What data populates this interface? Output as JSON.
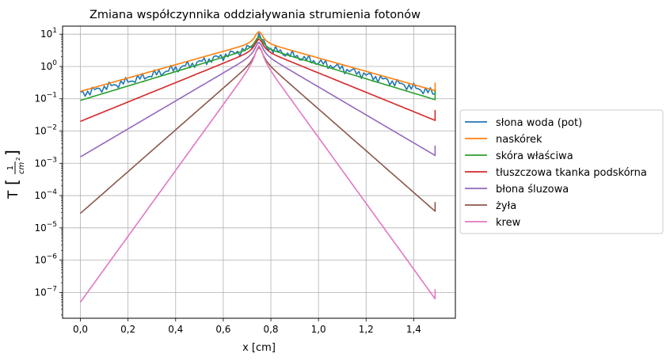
{
  "chart_data": {
    "type": "line",
    "title": "Zmiana współczynnika oddziaływania strumienia fotonów",
    "xlabel": "x [cm]",
    "ylabel": "T",
    "ylabel_frac_num": "1",
    "ylabel_frac_den": "cm",
    "ylabel_frac_exp": "2",
    "yscale": "log",
    "xlim": [
      -0.075,
      1.575
    ],
    "ylim_log10": [
      -7.8,
      1.25
    ],
    "grid": true,
    "legend_position": "center-right outside",
    "x_ticks": [
      "0,0",
      "0,2",
      "0,4",
      "0,6",
      "0,8",
      "1,0",
      "1,2",
      "1,4"
    ],
    "x_tick_values": [
      0,
      0.2,
      0.4,
      0.6,
      0.8,
      1.0,
      1.2,
      1.4
    ],
    "y_tick_exponents": [
      1,
      0,
      -1,
      -2,
      -3,
      -4,
      -5,
      -6,
      -7
    ],
    "y_tick_base": "10",
    "peak_x": 0.75,
    "series": [
      {
        "name": "słona woda (pot)",
        "color": "#1f77b4",
        "noisy": true,
        "edge_log10": -0.85,
        "peak_log10": 0.62,
        "end_log10": -0.7
      },
      {
        "name": "naskórek",
        "color": "#ff7f0e",
        "edge_log10": -0.77,
        "peak_log10": 0.78,
        "end_log10": -0.5
      },
      {
        "name": "skóra właściwa",
        "color": "#2ca02c",
        "edge_log10": -1.05,
        "peak_log10": 0.62,
        "end_log10": -0.75
      },
      {
        "name": "tłuszczowa tkanka podskórna",
        "color": "#d62728",
        "edge_log10": -1.7,
        "peak_log10": 0.55,
        "end_log10": -1.35
      },
      {
        "name": "błona śluzowa",
        "color": "#9467bd",
        "edge_log10": -2.8,
        "peak_log10": 0.45,
        "end_log10": -2.45
      },
      {
        "name": "żyła",
        "color": "#8c564b",
        "edge_log10": -4.55,
        "peak_log10": 0.3,
        "end_log10": -4.2
      },
      {
        "name": "krew",
        "color": "#e377c2",
        "edge_log10": -7.3,
        "peak_log10": 0.35,
        "end_log10": -6.9
      }
    ]
  }
}
